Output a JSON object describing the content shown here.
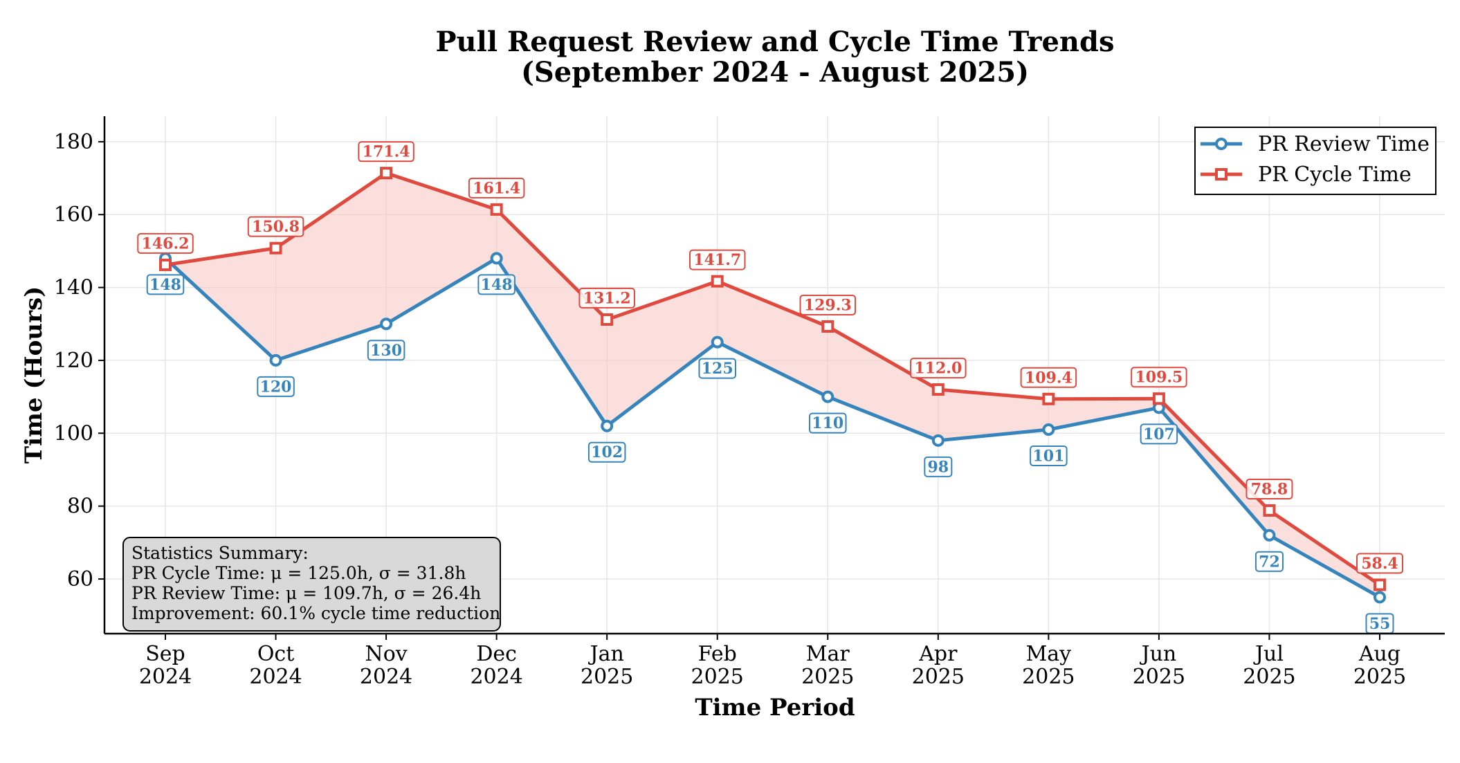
{
  "chart_data": {
    "type": "line",
    "title": "Pull Request Review and Cycle Time Trends",
    "subtitle": "(September 2024 - August 2025)",
    "xlabel": "Time Period",
    "ylabel": "Time (Hours)",
    "categories": [
      [
        "Sep",
        "2024"
      ],
      [
        "Oct",
        "2024"
      ],
      [
        "Nov",
        "2024"
      ],
      [
        "Dec",
        "2024"
      ],
      [
        "Jan",
        "2025"
      ],
      [
        "Feb",
        "2025"
      ],
      [
        "Mar",
        "2025"
      ],
      [
        "Apr",
        "2025"
      ],
      [
        "May",
        "2025"
      ],
      [
        "Jun",
        "2025"
      ],
      [
        "Jul",
        "2025"
      ],
      [
        "Aug",
        "2025"
      ]
    ],
    "ylim": [
      45,
      187
    ],
    "yticks": [
      60,
      80,
      100,
      120,
      140,
      160,
      180
    ],
    "grid": true,
    "legend_position": "top-right",
    "series": [
      {
        "name": "PR Review Time",
        "color": "#3584bb",
        "marker": "circle",
        "values": [
          148,
          120,
          130,
          148,
          102,
          125,
          110,
          98,
          101,
          107,
          72,
          55
        ],
        "labels": [
          "148",
          "120",
          "130",
          "148",
          "102",
          "125",
          "110",
          "98",
          "101",
          "107",
          "72",
          "55"
        ]
      },
      {
        "name": "PR Cycle Time",
        "color": "#e04a3e",
        "marker": "square",
        "values": [
          146.2,
          150.8,
          171.4,
          161.4,
          131.2,
          141.7,
          129.3,
          112.0,
          109.4,
          109.5,
          78.8,
          58.4
        ],
        "labels": [
          "146.2",
          "150.8",
          "171.4",
          "161.4",
          "131.2",
          "141.7",
          "129.3",
          "112.0",
          "109.4",
          "109.5",
          "78.8",
          "58.4"
        ]
      }
    ],
    "fill_between_color": "#f7c9c5",
    "stats_box": {
      "lines": [
        "Statistics Summary:",
        "PR Cycle Time: μ = 125.0h, σ = 31.8h",
        "PR Review Time: μ = 109.7h, σ = 26.4h",
        "Improvement: 60.1% cycle time reduction"
      ]
    }
  }
}
